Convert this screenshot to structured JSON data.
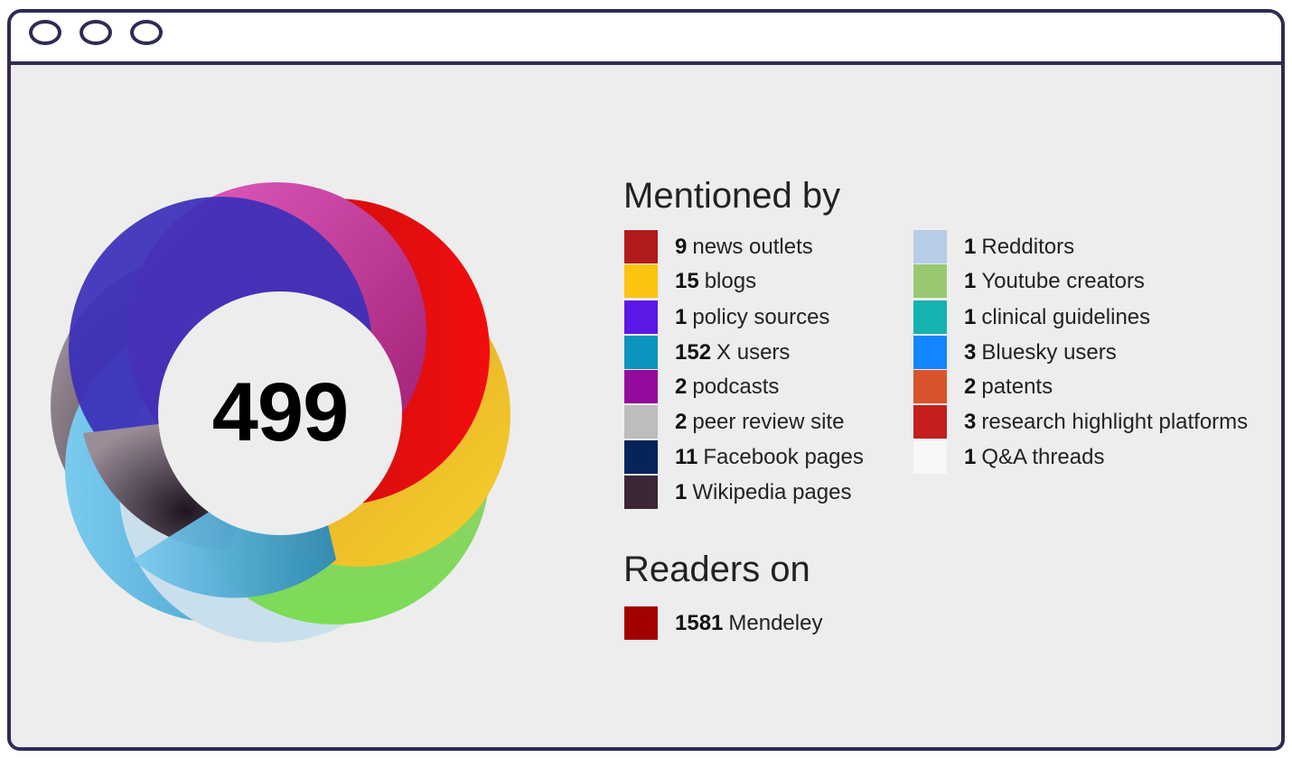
{
  "score": "499",
  "mentioned_title": "Mentioned by",
  "readers_title": "Readers on",
  "mentions_left": [
    {
      "count": "9",
      "label": "news outlets",
      "color": "#b21b1b"
    },
    {
      "count": "15",
      "label": "blogs",
      "color": "#fcc311"
    },
    {
      "count": "1",
      "label": "policy sources",
      "color": "#5c18e6"
    },
    {
      "count": "152",
      "label": "X users",
      "color": "#0b94be"
    },
    {
      "count": "2",
      "label": "podcasts",
      "color": "#930a9c"
    },
    {
      "count": "2",
      "label": "peer review site",
      "color": "#bdbdbd"
    },
    {
      "count": "11",
      "label": "Facebook pages",
      "color": "#04245a"
    },
    {
      "count": "1",
      "label": "Wikipedia pages",
      "color": "#3b2738"
    }
  ],
  "mentions_right": [
    {
      "count": "1",
      "label": "Redditors",
      "color": "#b7cce6"
    },
    {
      "count": "1",
      "label": "Youtube creators",
      "color": "#98c86f"
    },
    {
      "count": "1",
      "label": "clinical guidelines",
      "color": "#14b2b0"
    },
    {
      "count": "3",
      "label": "Bluesky users",
      "color": "#1486ff"
    },
    {
      "count": "2",
      "label": "patents",
      "color": "#d9542a"
    },
    {
      "count": "3",
      "label": "research highlight platforms",
      "color": "#c41e1e"
    },
    {
      "count": "1",
      "label": "Q&A threads",
      "color": "#f7f7f7"
    }
  ],
  "readers": [
    {
      "count": "1581",
      "label": "Mendeley",
      "color": "#a30000"
    }
  ]
}
